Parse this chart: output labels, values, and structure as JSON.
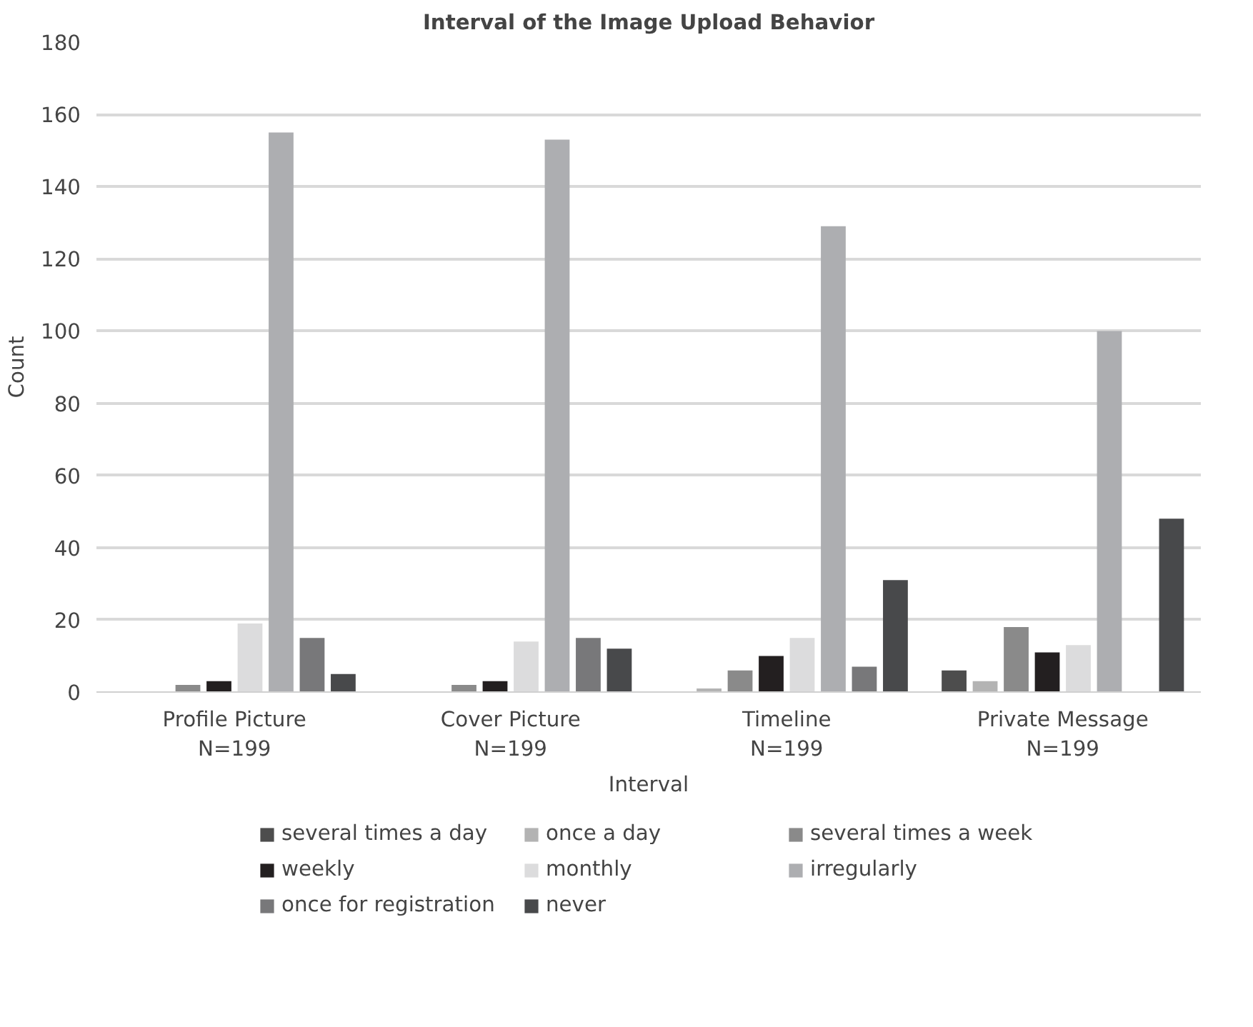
{
  "chart_data": {
    "type": "bar",
    "title": "Interval of the Image Upload Behavior",
    "xlabel": "Interval",
    "ylabel": "Count",
    "categories": [
      "Profile Picture\nN=199",
      "Cover Picture\nN=199",
      "Timeline\nN=199",
      "Private Message\nN=199"
    ],
    "series": [
      {
        "name": "several times a day",
        "color": "#4d4d4d",
        "values": [
          0,
          0,
          0,
          6
        ]
      },
      {
        "name": "once a day",
        "color": "#b3b3b3",
        "values": [
          0,
          0,
          1,
          3
        ]
      },
      {
        "name": "several times a week",
        "color": "#8a8a8a",
        "values": [
          2,
          2,
          6,
          18
        ]
      },
      {
        "name": "weekly",
        "color": "#231f20",
        "values": [
          3,
          3,
          10,
          11
        ]
      },
      {
        "name": "monthly",
        "color": "#dcdcdd",
        "values": [
          19,
          14,
          15,
          13
        ]
      },
      {
        "name": "irregularly",
        "color": "#adaeb1",
        "values": [
          155,
          153,
          129,
          100
        ]
      },
      {
        "name": "once for registration",
        "color": "#78787a",
        "values": [
          15,
          15,
          7,
          0
        ]
      },
      {
        "name": "never",
        "color": "#48494b",
        "values": [
          5,
          12,
          31,
          48
        ]
      }
    ],
    "ylim": [
      0,
      180
    ],
    "yticks": [
      0,
      20,
      40,
      60,
      80,
      100,
      120,
      140,
      160,
      180
    ],
    "grid": "y",
    "legend": "bottom"
  }
}
